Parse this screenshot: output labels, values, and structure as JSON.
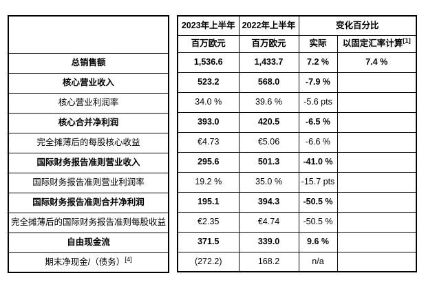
{
  "page": {
    "background": "#ffffff",
    "border_color": "#000000",
    "text_color": "#000000"
  },
  "header": {
    "period_2023": "2023年上半年",
    "period_2022": "2022年上半年",
    "change_title": "变化百分比",
    "unit_2023": "百万欧元",
    "unit_2022": "百万欧元",
    "actual_label": "实际",
    "constant_fx_label": "以固定汇率计算",
    "constant_fx_footnote": "[1]"
  },
  "rows": [
    {
      "label": "总销售额",
      "label_footnote": "",
      "bold": true,
      "v2023": "1,536.6",
      "v2022": "1,433.7",
      "actual": "7.2 %",
      "constant_fx": "7.4 %"
    },
    {
      "label": "核心营业收入",
      "label_footnote": "",
      "bold": true,
      "v2023": "523.2",
      "v2022": "568.0",
      "actual": "-7.9 %",
      "constant_fx": ""
    },
    {
      "label": "核心营业利润率",
      "label_footnote": "",
      "bold": false,
      "v2023": "34.0 %",
      "v2022": "39.6 %",
      "actual": "-5.6 pts",
      "constant_fx": ""
    },
    {
      "label": "核心合并净利润",
      "label_footnote": "",
      "bold": true,
      "v2023": "393.0",
      "v2022": "420.5",
      "actual": "-6.5 %",
      "constant_fx": ""
    },
    {
      "label": "完全摊薄后的每股核心收益",
      "label_footnote": "",
      "bold": false,
      "v2023": "€4.73",
      "v2022": "€5.06",
      "actual": "-6.6 %",
      "constant_fx": ""
    },
    {
      "label": "国际财务报告准则营业收入",
      "label_footnote": "",
      "bold": true,
      "v2023": "295.6",
      "v2022": "501.3",
      "actual": "-41.0 %",
      "constant_fx": ""
    },
    {
      "label": "国际财务报告准则营业利润率",
      "label_footnote": "",
      "bold": false,
      "v2023": "19.2 %",
      "v2022": "35.0 %",
      "actual": "-15.7 pts",
      "constant_fx": ""
    },
    {
      "label": "国际财务报告准则合并净利润",
      "label_footnote": "",
      "bold": true,
      "v2023": "195.1",
      "v2022": "394.3",
      "actual": "-50.5 %",
      "constant_fx": ""
    },
    {
      "label": "完全摊薄后的国际财务报告准则每股收益",
      "label_footnote": "",
      "bold": false,
      "v2023": "€2.35",
      "v2022": "€4.74",
      "actual": "-50.5 %",
      "constant_fx": ""
    },
    {
      "label": "自由现金流",
      "label_footnote": "",
      "bold": true,
      "v2023": "371.5",
      "v2022": "339.0",
      "actual": "9.6 %",
      "constant_fx": ""
    },
    {
      "label": "期末净现金/（债务）",
      "label_footnote": "[4]",
      "bold": false,
      "v2023": "(272.2)",
      "v2022": "168.2",
      "actual": "n/a",
      "constant_fx": ""
    }
  ]
}
